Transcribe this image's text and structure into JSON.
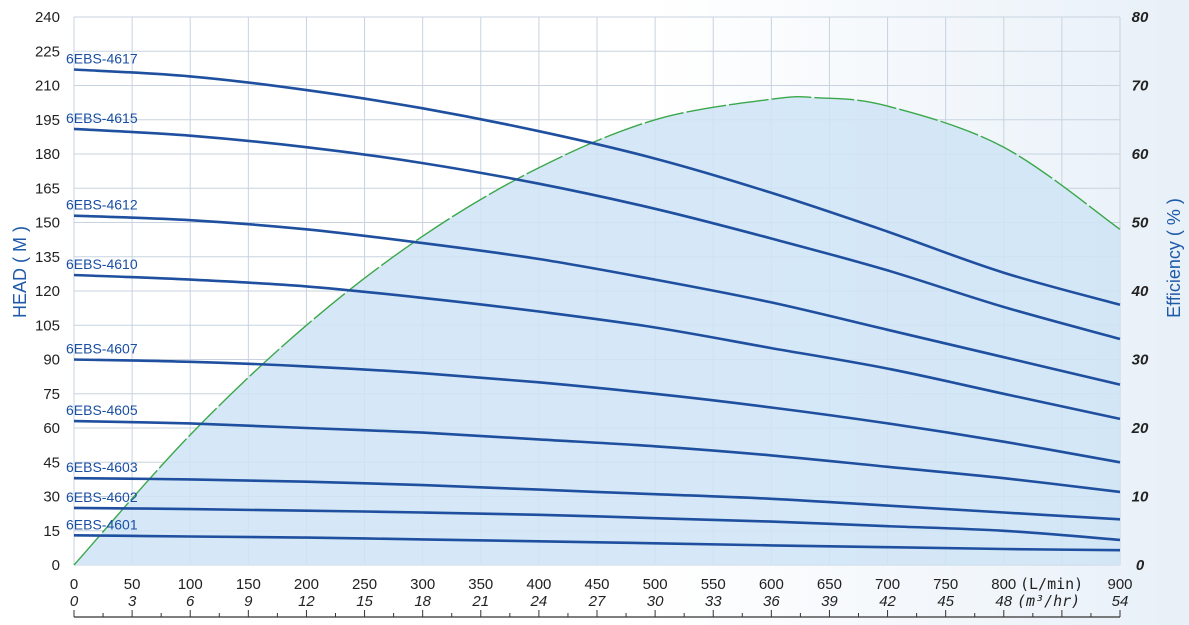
{
  "colors": {
    "curve": "#1f4f9f",
    "efficiency_line": "#3aa84a",
    "efficiency_fill": "#cfe4f6",
    "grid": "#c8d3df",
    "axis_title": "#1f5aa8"
  },
  "chart_data": {
    "type": "line",
    "ylabel": "HEAD ( M )",
    "y2label": "Efficiency ( % )",
    "xlabel_unit_primary": "(L/min)",
    "xlabel_unit_secondary": "(m³/hr)",
    "x_ticks_primary": [
      "0",
      "50",
      "100",
      "150",
      "200",
      "250",
      "300",
      "350",
      "400",
      "450",
      "500",
      "550",
      "600",
      "650",
      "700",
      "750",
      "800",
      "900"
    ],
    "x_ticks_secondary": [
      "0",
      "3",
      "6",
      "9",
      "12",
      "15",
      "18",
      "21",
      "24",
      "27",
      "30",
      "33",
      "36",
      "39",
      "42",
      "45",
      "48",
      "54"
    ],
    "y_ticks": [
      "0",
      "15",
      "30",
      "45",
      "60",
      "75",
      "90",
      "105",
      "120",
      "135",
      "150",
      "165",
      "180",
      "195",
      "210",
      "225",
      "240"
    ],
    "y2_ticks": [
      "0",
      "10",
      "20",
      "30",
      "40",
      "50",
      "60",
      "70",
      "80"
    ],
    "xlim": [
      0,
      900
    ],
    "ylim": [
      0,
      240
    ],
    "y2lim": [
      0,
      80
    ],
    "grid": true,
    "series": [
      {
        "name": "6EBS-4617",
        "x": [
          0,
          100,
          200,
          300,
          400,
          500,
          600,
          700,
          800,
          900
        ],
        "y": [
          217,
          214,
          208,
          200,
          190,
          178,
          163,
          146,
          128,
          114
        ]
      },
      {
        "name": "6EBS-4615",
        "x": [
          0,
          100,
          200,
          300,
          400,
          500,
          600,
          700,
          800,
          900
        ],
        "y": [
          191,
          188,
          183,
          176,
          167,
          156,
          143,
          129,
          113,
          99
        ]
      },
      {
        "name": "6EBS-4612",
        "x": [
          0,
          100,
          200,
          300,
          400,
          500,
          600,
          700,
          800,
          900
        ],
        "y": [
          153,
          151,
          147,
          141,
          134,
          125,
          115,
          103,
          91,
          79
        ]
      },
      {
        "name": "6EBS-4610",
        "x": [
          0,
          100,
          200,
          300,
          400,
          500,
          600,
          700,
          800,
          900
        ],
        "y": [
          127,
          125,
          122,
          117,
          111,
          104,
          95,
          86,
          75,
          64
        ]
      },
      {
        "name": "6EBS-4607",
        "x": [
          0,
          100,
          200,
          300,
          400,
          500,
          600,
          700,
          800,
          900
        ],
        "y": [
          90,
          89,
          87,
          84,
          80,
          75,
          69,
          62,
          54,
          45
        ]
      },
      {
        "name": "6EBS-4605",
        "x": [
          0,
          100,
          200,
          300,
          400,
          500,
          600,
          700,
          800,
          900
        ],
        "y": [
          63,
          62,
          60,
          58,
          55,
          52,
          48,
          43,
          38,
          32
        ]
      },
      {
        "name": "6EBS-4603",
        "x": [
          0,
          100,
          200,
          300,
          400,
          500,
          600,
          700,
          800,
          900
        ],
        "y": [
          38,
          37.5,
          36.5,
          35,
          33,
          31,
          29,
          26,
          23,
          20
        ]
      },
      {
        "name": "6EBS-4602",
        "x": [
          0,
          100,
          200,
          300,
          400,
          500,
          600,
          700,
          800,
          900
        ],
        "y": [
          25,
          24.5,
          23.8,
          23,
          22,
          20.5,
          19,
          17,
          15,
          11
        ]
      },
      {
        "name": "6EBS-4601",
        "x": [
          0,
          100,
          200,
          300,
          400,
          500,
          600,
          700,
          800,
          900
        ],
        "y": [
          13,
          12.5,
          12,
          11.2,
          10.4,
          9.5,
          8.6,
          7.8,
          7,
          6.5
        ]
      }
    ],
    "efficiency": {
      "x": [
        0,
        100,
        200,
        300,
        400,
        500,
        600,
        640,
        700,
        800,
        900
      ],
      "y": [
        0,
        19,
        35,
        48,
        58,
        65,
        68,
        68.2,
        67,
        61,
        49
      ]
    }
  }
}
